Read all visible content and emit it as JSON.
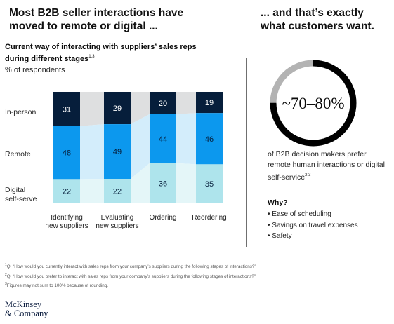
{
  "headline_left": "Most B2B seller interactions have moved to remote or digital ...",
  "headline_right": "... and that’s exactly what customers want.",
  "chart_subtitle": "Current way of interacting with suppliers’ sales reps during different stages",
  "chart_subtitle_note": "1,3",
  "unit_label": "% of respondents",
  "colors": {
    "in_person": "#061e3b",
    "remote": "#0c98ee",
    "digital": "#aee4ec",
    "flow_gray": "#dedfe0",
    "flow_blue": "#d3edfb",
    "flow_teal": "#e4f6f8",
    "ring_dark": "#000000",
    "ring_gray": "#b3b3b3"
  },
  "chart_data": {
    "type": "bar",
    "stacked": true,
    "categories": [
      "Identifying new suppliers",
      "Evaluating new suppliers",
      "Ordering",
      "Reordering"
    ],
    "series": [
      {
        "name": "In-person",
        "values": [
          31,
          29,
          20,
          19
        ]
      },
      {
        "name": "Remote",
        "values": [
          48,
          49,
          44,
          46
        ]
      },
      {
        "name": "Digital self-serve",
        "values": [
          22,
          22,
          36,
          35
        ]
      }
    ],
    "ylabel": "% of respondents",
    "legend": "left"
  },
  "category_lines": [
    [
      "Identifying",
      "new suppliers"
    ],
    [
      "Evaluating",
      "new suppliers"
    ],
    [
      "Ordering"
    ],
    [
      "Reordering"
    ]
  ],
  "row_labels": {
    "in_person": "In-person",
    "remote": "Remote",
    "digital_line1": "Digital",
    "digital_line2": "self-serve"
  },
  "callout": {
    "value_text": "~70–80%",
    "ring_fraction": 0.75,
    "description": "of B2B decision makers prefer remote human interactions or digital self-service",
    "description_note": "2,3"
  },
  "why": {
    "title": "Why?",
    "items": [
      "Ease of scheduling",
      "Savings on travel expenses",
      "Safety"
    ]
  },
  "footnotes": [
    {
      "mark": "1",
      "text": "Q: “How would you currently interact with sales reps from your company’s suppliers during the following stages of interactions?”"
    },
    {
      "mark": "2",
      "text": "Q: “How would you prefer to interact with sales reps from your company’s suppliers during the following stages of interactions?”"
    },
    {
      "mark": "3",
      "text": "Figures may not sum to 100% because of rounding."
    }
  ],
  "logo": {
    "line1": "McKinsey",
    "line2": "& Company"
  }
}
